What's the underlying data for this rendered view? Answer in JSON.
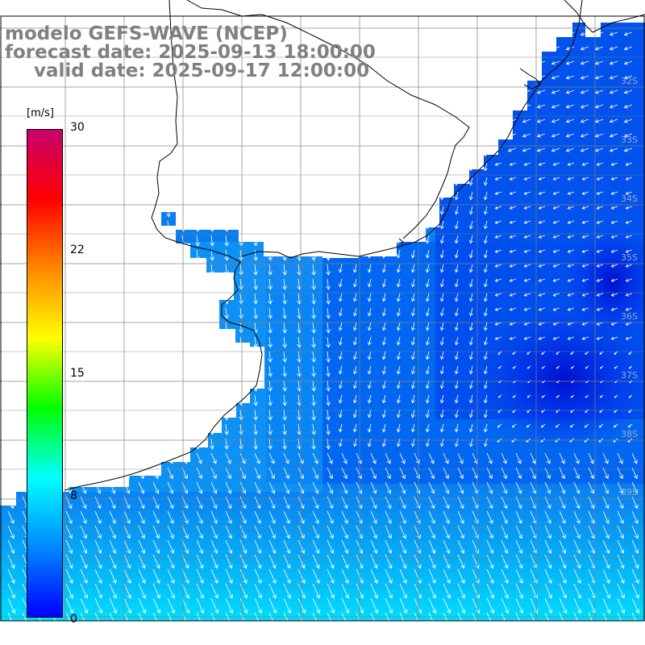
{
  "title": {
    "model": "modelo GEFS-WAVE (NCEP)",
    "forecast": "forecast date: 2025-09-13 18:00:00",
    "valid": "valid date: 2025-09-17 12:00:00"
  },
  "colorbar": {
    "unit": "[m/s]",
    "ticks": [
      "30",
      "22",
      "15",
      "8",
      "0"
    ],
    "min": 0,
    "max": 30,
    "stops": [
      "#0000ff",
      "#0088ff",
      "#00ffff",
      "#00ff00",
      "#ffff00",
      "#ff8800",
      "#ff0000",
      "#c8006e"
    ]
  },
  "map": {
    "lat_labels": [
      "32S",
      "33S",
      "34S",
      "35S",
      "36S",
      "37S",
      "38S",
      "39S"
    ],
    "land_color": "#ffffff",
    "grid_color": "#808080",
    "coast_color": "#000000",
    "vector_color": "#ffffff"
  }
}
